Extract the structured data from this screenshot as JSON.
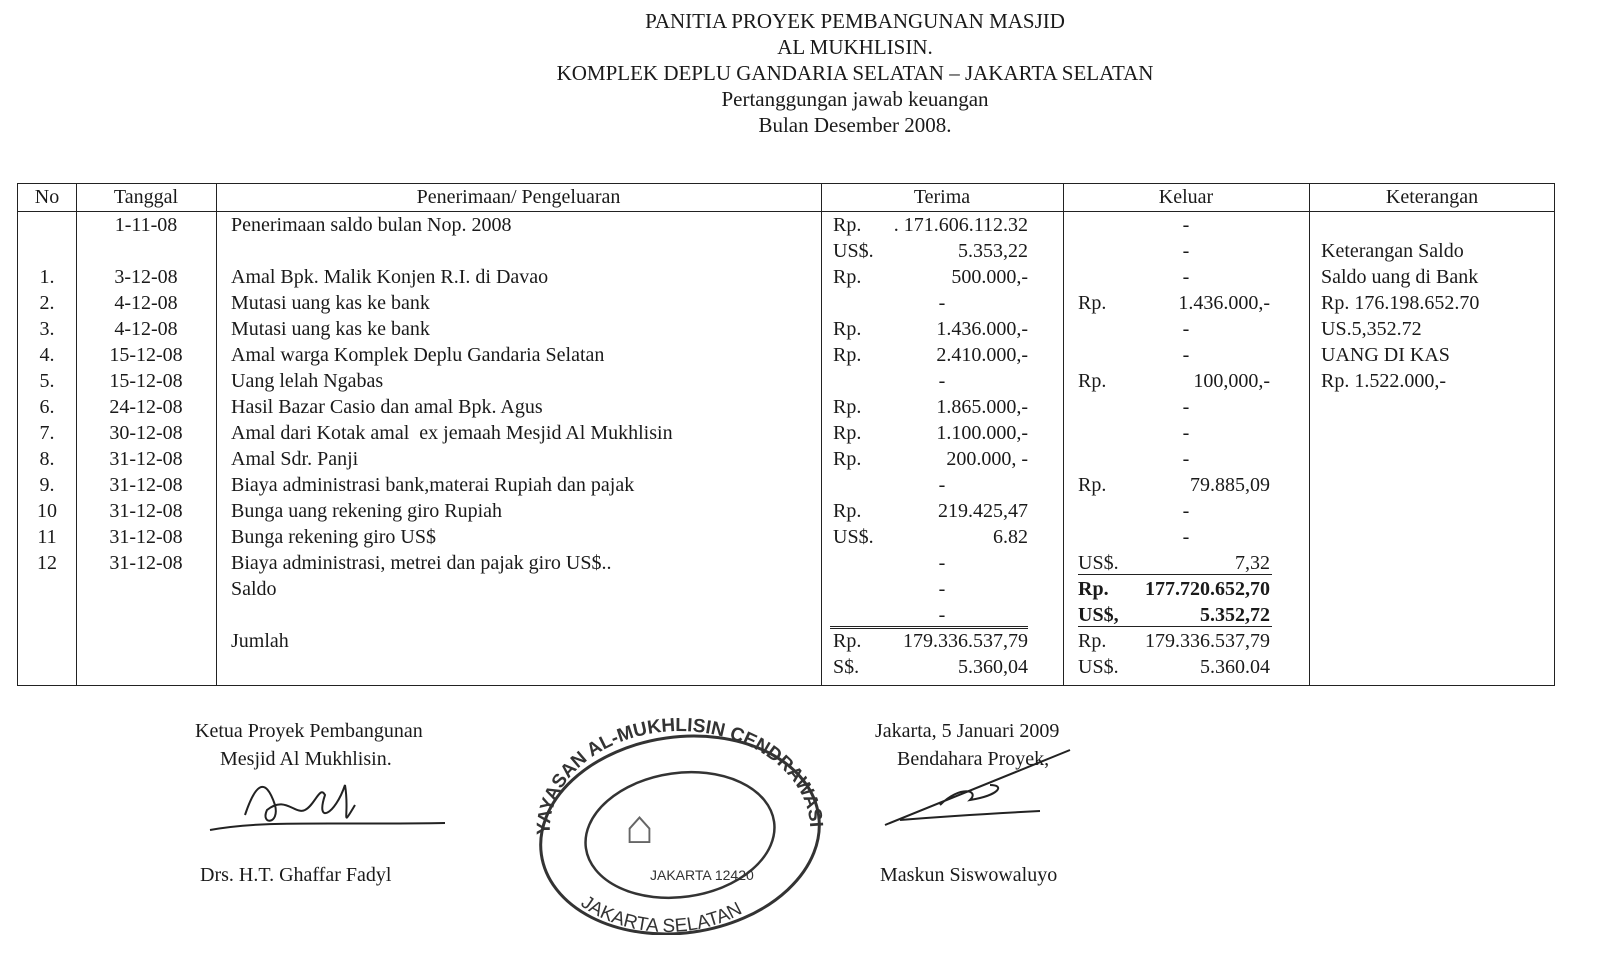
{
  "header": {
    "lines": [
      "PANITIA PROYEK PEMBANGUNAN MASJID",
      "AL MUKHLISIN.",
      "KOMPLEK DEPLU GANDARIA SELATAN – JAKARTA SELATAN",
      "Pertanggungan jawab keuangan",
      "Bulan Desember 2008."
    ]
  },
  "table": {
    "columns": [
      "No",
      "Tanggal",
      "Penerimaan/ Pengeluaran",
      "Terima",
      "Keluar",
      "Keterangan"
    ],
    "rows": [
      {
        "no": "",
        "date": "1-11-08",
        "desc": "Penerimaan saldo bulan Nop. 2008",
        "in_cur": "Rp.",
        "in_amt": ". 171.606.112.32",
        "out_cur": "",
        "out_amt": "-",
        "note": ""
      },
      {
        "no": "",
        "date": "",
        "desc": "",
        "in_cur": "US$.",
        "in_amt": "5.353,22",
        "out_cur": "",
        "out_amt": "-",
        "note": "Keterangan Saldo"
      },
      {
        "no": "1.",
        "date": "3-12-08",
        "desc": "Amal Bpk. Malik Konjen R.I. di Davao",
        "in_cur": "Rp.",
        "in_amt": "500.000,-",
        "out_cur": "",
        "out_amt": "-",
        "note": "Saldo uang di Bank"
      },
      {
        "no": "2.",
        "date": "4-12-08",
        "desc": "Mutasi uang kas ke bank",
        "in_cur": "",
        "in_amt": "-",
        "out_cur": "Rp.",
        "out_amt": "1.436.000,-",
        "note": "Rp. 176.198.652.70"
      },
      {
        "no": "3.",
        "date": "4-12-08",
        "desc": "Mutasi uang kas ke bank",
        "in_cur": "Rp.",
        "in_amt": "1.436.000,-",
        "out_cur": "",
        "out_amt": "-",
        "note": "US.5,352.72"
      },
      {
        "no": "4.",
        "date": "15-12-08",
        "desc": "Amal warga Komplek Deplu Gandaria Selatan",
        "in_cur": "Rp.",
        "in_amt": "2.410.000,-",
        "out_cur": "",
        "out_amt": "-",
        "note": "UANG DI KAS"
      },
      {
        "no": "5.",
        "date": "15-12-08",
        "desc": "Uang lelah Ngabas",
        "in_cur": "",
        "in_amt": "-",
        "out_cur": "Rp.",
        "out_amt": "100,000,-",
        "note": "Rp. 1.522.000,-"
      },
      {
        "no": "6.",
        "date": "24-12-08",
        "desc": "Hasil Bazar Casio dan amal Bpk. Agus",
        "in_cur": "Rp.",
        "in_amt": "1.865.000,-",
        "out_cur": "",
        "out_amt": "-",
        "note": ""
      },
      {
        "no": "7.",
        "date": "30-12-08",
        "desc": "Amal dari Kotak amal  ex jemaah Mesjid Al Mukhlisin",
        "in_cur": "Rp.",
        "in_amt": "1.100.000,-",
        "out_cur": "",
        "out_amt": "-",
        "note": ""
      },
      {
        "no": "8.",
        "date": "31-12-08",
        "desc": "Amal Sdr. Panji",
        "in_cur": "Rp.",
        "in_amt": "200.000, -",
        "out_cur": "",
        "out_amt": "-",
        "note": ""
      },
      {
        "no": "9.",
        "date": "31-12-08",
        "desc": "Biaya administrasi bank,materai Rupiah dan pajak",
        "in_cur": "",
        "in_amt": "-",
        "out_cur": "Rp.",
        "out_amt": "79.885,09",
        "note": ""
      },
      {
        "no": "10",
        "date": "31-12-08",
        "desc": "Bunga uang rekening giro Rupiah",
        "in_cur": "Rp.",
        "in_amt": "219.425,47",
        "out_cur": "",
        "out_amt": "-",
        "note": ""
      },
      {
        "no": "11",
        "date": "31-12-08",
        "desc": "Bunga rekening giro US$",
        "in_cur": "US$.",
        "in_amt": "6.82",
        "out_cur": "",
        "out_amt": "-",
        "note": ""
      },
      {
        "no": "12",
        "date": "31-12-08",
        "desc": "Biaya administrasi, metrei dan pajak giro US$..",
        "in_cur": "",
        "in_amt": "-",
        "out_cur": "US$.",
        "out_amt": "7,32",
        "note": ""
      },
      {
        "no": "",
        "date": "",
        "desc": "Saldo",
        "in_cur": "",
        "in_amt": "-",
        "out_cur": "Rp.",
        "out_amt": "177.720.652,70",
        "note": ""
      },
      {
        "no": "",
        "date": "",
        "desc": "",
        "in_cur": "",
        "in_amt": "-",
        "out_cur": "US$,",
        "out_amt": "5.352,72",
        "note": ""
      },
      {
        "no": "",
        "date": "",
        "desc": "Jumlah",
        "in_cur": "Rp.",
        "in_amt": "179.336.537,79",
        "out_cur": "Rp.",
        "out_amt": "179.336.537,79",
        "note": ""
      },
      {
        "no": "",
        "date": "",
        "desc": "",
        "in_cur": "S$.",
        "in_amt": "5.360,04",
        "out_cur": "US$.",
        "out_amt": "5.360.04",
        "note": ""
      }
    ]
  },
  "signatures": {
    "left_title_1": "Ketua Proyek Pembangunan",
    "left_title_2": "Mesjid Al Mukhlisin.",
    "left_name": "Drs. H.T. Ghaffar Fadyl",
    "right_place_date": "Jakarta, 5 Januari 2009",
    "right_title": "Bendahara Proyek,",
    "right_name": "Maskun Siswowaluyo"
  },
  "stamp": {
    "top_text": "YAYASAN AL-MUKHLISIN CENDRAWASIH",
    "mid_text": "JAKARTA 12420",
    "bottom_text": "JAKARTA SELATAN"
  },
  "colors": {
    "ink": "#1a1a1a",
    "stamp": "#333333"
  }
}
